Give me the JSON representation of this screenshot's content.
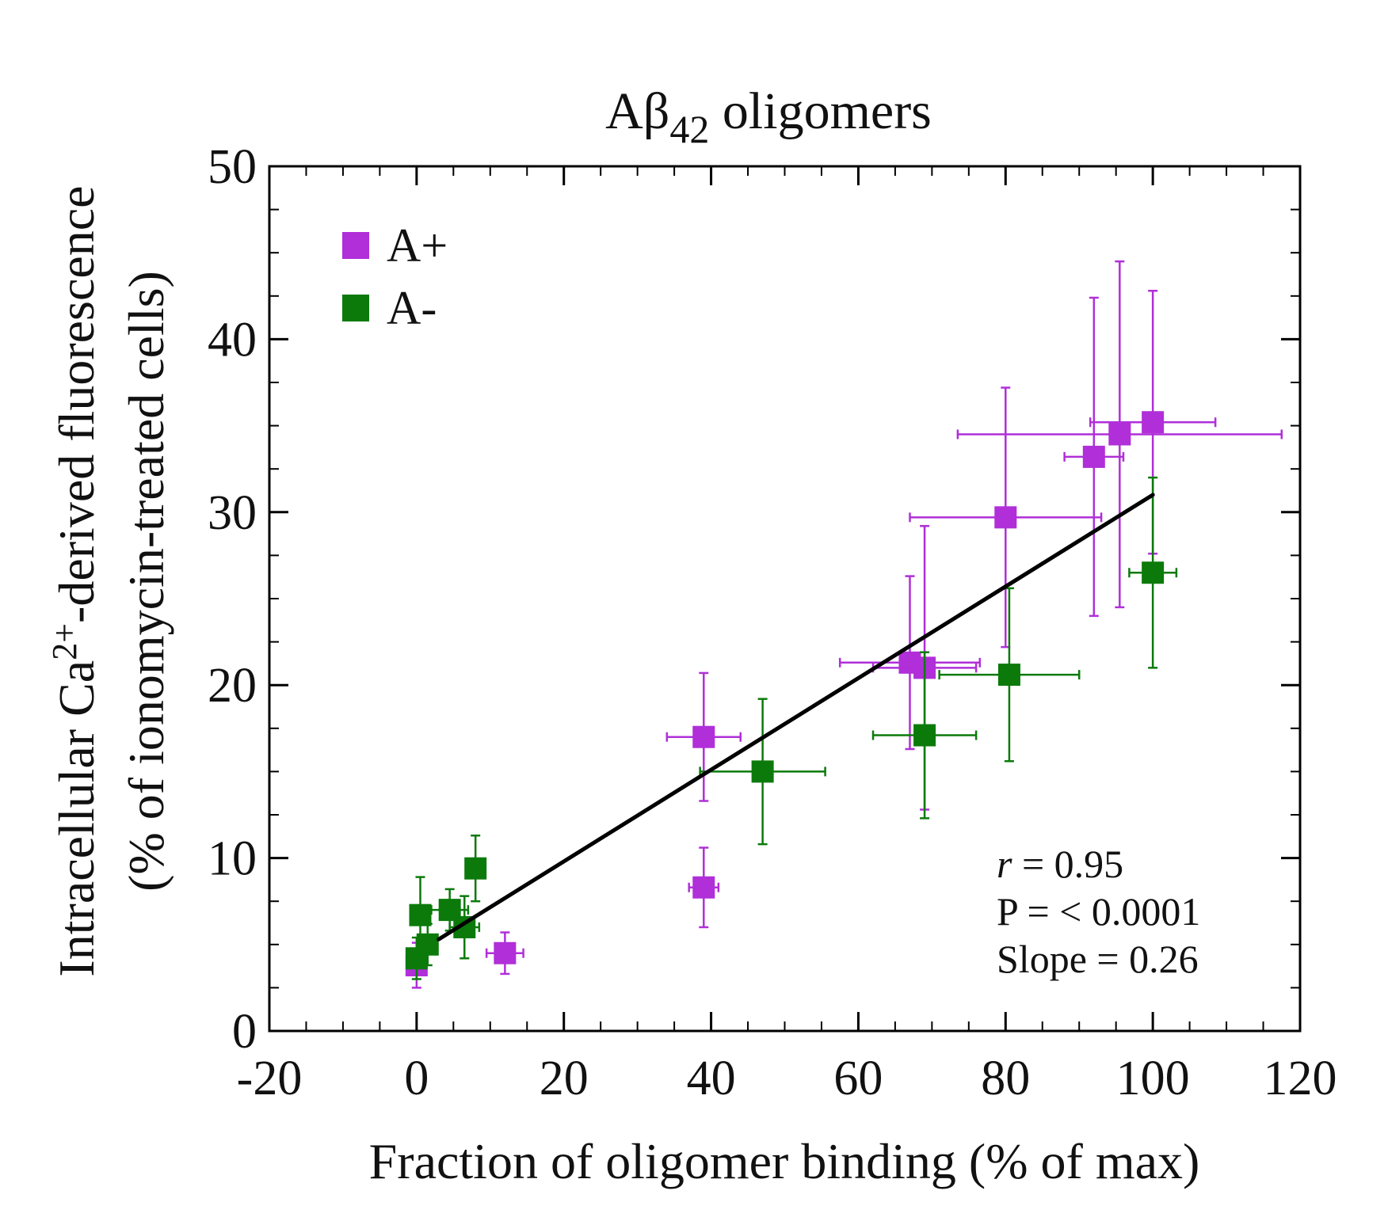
{
  "chart_data": {
    "type": "scatter",
    "title": {
      "main": "Aβ",
      "sub": "42",
      "rest": " oligomers"
    },
    "xlabel": "Fraction of oligomer binding (% of max)",
    "ylabel": {
      "line1_pre": "Intracellular Ca",
      "line1_sup": "2+",
      "line1_post": "-derived fluorescence",
      "line2": "(% of ionomycin-treated cells)"
    },
    "xlim": [
      -20,
      120
    ],
    "ylim": [
      0,
      50
    ],
    "x_ticks": [
      -20,
      0,
      20,
      40,
      60,
      80,
      100,
      120
    ],
    "y_ticks": [
      0,
      10,
      20,
      30,
      40,
      50
    ],
    "x_minor_step": 5,
    "y_minor_step": 2.5,
    "legend_position": "top-left",
    "series": [
      {
        "name": "A+",
        "color": "#b02fd8",
        "points": [
          {
            "x": 0,
            "y": 3.8,
            "xerr": 0.5,
            "yerr": 1.3
          },
          {
            "x": 12,
            "y": 4.5,
            "xerr": 2.5,
            "yerr": 1.2
          },
          {
            "x": 39,
            "y": 8.3,
            "xerr": 2.0,
            "yerr": 2.3
          },
          {
            "x": 39,
            "y": 17,
            "xerr": 5.0,
            "yerr": 3.7
          },
          {
            "x": 67,
            "y": 21.3,
            "xerr": 9.5,
            "yerr": 5.0
          },
          {
            "x": 69,
            "y": 21,
            "xerr": 7.0,
            "yerr": 8.2
          },
          {
            "x": 80,
            "y": 29.7,
            "xerr": 13.0,
            "yerr": 7.5
          },
          {
            "x": 92,
            "y": 33.2,
            "xerr": 4.0,
            "yerr": 9.2
          },
          {
            "x": 95.5,
            "y": 34.5,
            "xerr": 22.0,
            "yerr": 10.0
          },
          {
            "x": 100,
            "y": 35.2,
            "xerr": 8.5,
            "yerr": 7.6
          }
        ]
      },
      {
        "name": "A-",
        "color": "#0b7a0b",
        "points": [
          {
            "x": 0,
            "y": 4.2,
            "xerr": 0.5,
            "yerr": 1.2
          },
          {
            "x": 0.5,
            "y": 6.7,
            "xerr": 0.5,
            "yerr": 2.2
          },
          {
            "x": 1.5,
            "y": 5.0,
            "xerr": 1.0,
            "yerr": 1.2
          },
          {
            "x": 4.5,
            "y": 7.0,
            "xerr": 2.5,
            "yerr": 1.2
          },
          {
            "x": 6.5,
            "y": 6.0,
            "xerr": 2.0,
            "yerr": 1.8
          },
          {
            "x": 8,
            "y": 9.4,
            "xerr": 0.8,
            "yerr": 1.9
          },
          {
            "x": 47,
            "y": 15.0,
            "xerr": 8.5,
            "yerr": 4.2
          },
          {
            "x": 69,
            "y": 17.1,
            "xerr": 7.0,
            "yerr": 4.8
          },
          {
            "x": 80.5,
            "y": 20.6,
            "xerr": 9.5,
            "yerr": 5.0
          },
          {
            "x": 100,
            "y": 26.5,
            "xerr": 3.2,
            "yerr": 5.5
          }
        ]
      }
    ],
    "fit_line": {
      "x": [
        3,
        100
      ],
      "y": [
        5.3,
        31.0
      ],
      "color": "#000000"
    },
    "annotations": {
      "r_symbol": "r",
      "r_value": " = 0.95",
      "p_text": "P = < 0.0001",
      "slope_text": "Slope = 0.26"
    }
  }
}
